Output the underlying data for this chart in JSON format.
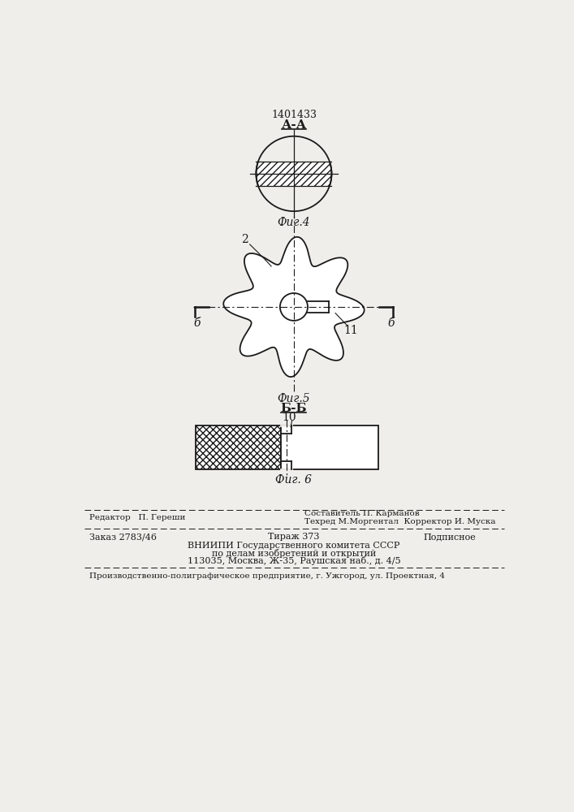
{
  "patent_number": "1401433",
  "fig4_label": "А-А",
  "fig4_caption": "Фиг.4",
  "fig5_caption": "Фиг.5",
  "fig6_caption": "Фиг. 6",
  "fig6_section": "Б-Б",
  "label_2": "2",
  "label_11": "11",
  "label_10": "10",
  "label_b_left": "б",
  "label_b_right": "б",
  "bg_color": "#f0eeea",
  "line_color": "#1a1a1a"
}
